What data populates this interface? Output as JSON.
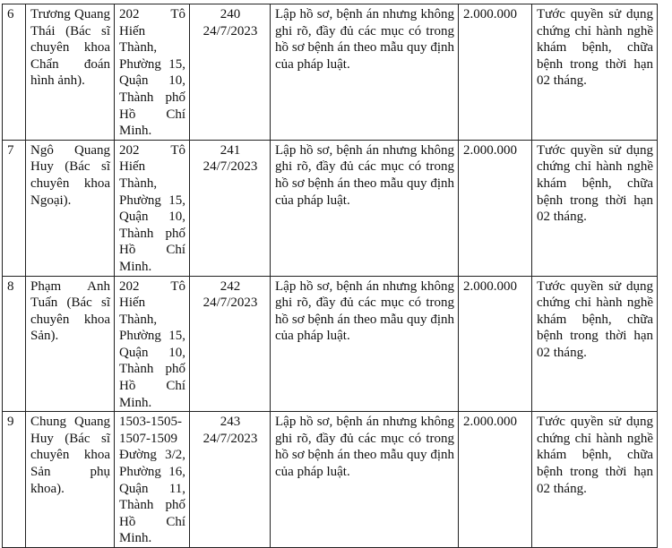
{
  "rows": [
    {
      "no": "6",
      "name": "Trương Quang Thái (Bác sĩ chuyên khoa Chẩn đoán hình ảnh).",
      "address": "202 Tô Hiến Thành, Phường 15, Quận 10, Thành phố Hồ Chí Minh.",
      "decision_no": "240",
      "decision_date": "24/7/2023",
      "violation": "Lập hồ sơ, bệnh án nhưng không ghi rõ, đầy đủ các mục có trong hồ sơ bệnh án theo mẫu quy định của pháp luật.",
      "fine": "2.000.000",
      "penalty": "Tước quyền sử dụng chứng chỉ hành nghề khám bệnh, chữa bệnh trong thời hạn 02 tháng."
    },
    {
      "no": "7",
      "name": "Ngô Quang Huy (Bác sĩ chuyên khoa Ngoại).",
      "address": "202 Tô Hiến Thành, Phường 15, Quận 10, Thành phố Hồ Chí Minh.",
      "decision_no": "241",
      "decision_date": "24/7/2023",
      "violation": "Lập hồ sơ, bệnh án nhưng không ghi rõ, đầy đủ các mục có trong hồ sơ bệnh án theo mẫu quy định của pháp luật.",
      "fine": "2.000.000",
      "penalty": "Tước quyền sử dụng chứng chỉ hành nghề khám bệnh, chữa bệnh trong thời hạn 02 tháng."
    },
    {
      "no": "8",
      "name": "Phạm Anh Tuấn (Bác sĩ chuyên khoa Sản).",
      "address": "202 Tô Hiến Thành, Phường 15, Quận 10, Thành phố Hồ Chí Minh.",
      "decision_no": "242",
      "decision_date": "24/7/2023",
      "violation": "Lập hồ sơ, bệnh án nhưng không ghi rõ, đầy đủ các mục có trong hồ sơ bệnh án theo mẫu quy định của pháp luật.",
      "fine": "2.000.000",
      "penalty": "Tước quyền sử dụng chứng chỉ hành nghề khám bệnh, chữa bệnh trong thời hạn 02 tháng."
    },
    {
      "no": "9",
      "name": "Chung Quang Huy (Bác sĩ chuyên khoa Sản phụ khoa).",
      "address": "1503-1505-1507-1509 Đường 3/2, Phường 16, Quận 11, Thành phố Hồ Chí Minh.",
      "decision_no": "243",
      "decision_date": "24/7/2023",
      "violation": "Lập hồ sơ, bệnh án nhưng không ghi rõ, đầy đủ các mục có trong hồ sơ bệnh án theo mẫu quy định của pháp luật.",
      "fine": "2.000.000",
      "penalty": "Tước quyền sử dụng chứng chỉ hành nghề khám bệnh, chữa bệnh trong thời hạn 02 tháng."
    }
  ]
}
